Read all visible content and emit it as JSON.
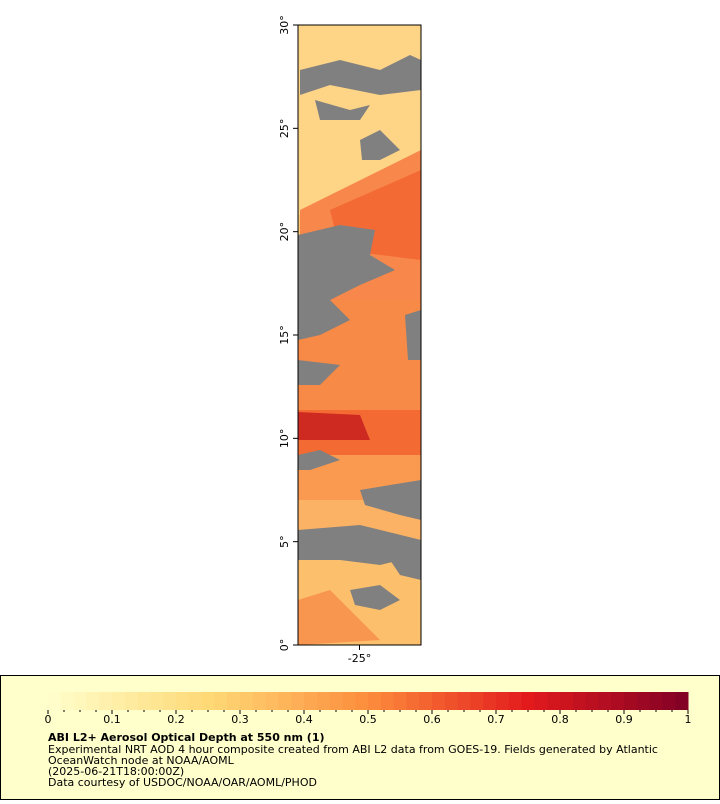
{
  "chart_data": {
    "type": "map",
    "title": "ABI L2+ Aerosol Optical Depth at 550 nm (1)",
    "description": [
      "Experimental NRT AOD 4 hour composite created from ABI L2 data from GOES-19. Fields generated by Atlantic",
      "OceanWatch node at NOAA/AOML"
    ],
    "time": "(2025-06-21T18:00:00Z)",
    "credit": "Data courtesy of USDOC/NOAA/OAR/AOML/PHOD",
    "xlim": [
      -28,
      -22
    ],
    "xticks": [
      {
        "value": -25,
        "label": "-25°"
      }
    ],
    "ylim": [
      0,
      30
    ],
    "yticks": [
      {
        "value": 0,
        "label": "0°"
      },
      {
        "value": 5,
        "label": "5°"
      },
      {
        "value": 10,
        "label": "10°"
      },
      {
        "value": 15,
        "label": "15°"
      },
      {
        "value": 20,
        "label": "20°"
      },
      {
        "value": 25,
        "label": "25°"
      },
      {
        "value": 30,
        "label": "30°"
      }
    ],
    "colorbar": {
      "clim": [
        0,
        1
      ],
      "ticks": [
        0,
        0.1,
        0.2,
        0.3,
        0.4,
        0.5,
        0.6,
        0.7,
        0.8,
        0.9,
        1
      ]
    }
  }
}
